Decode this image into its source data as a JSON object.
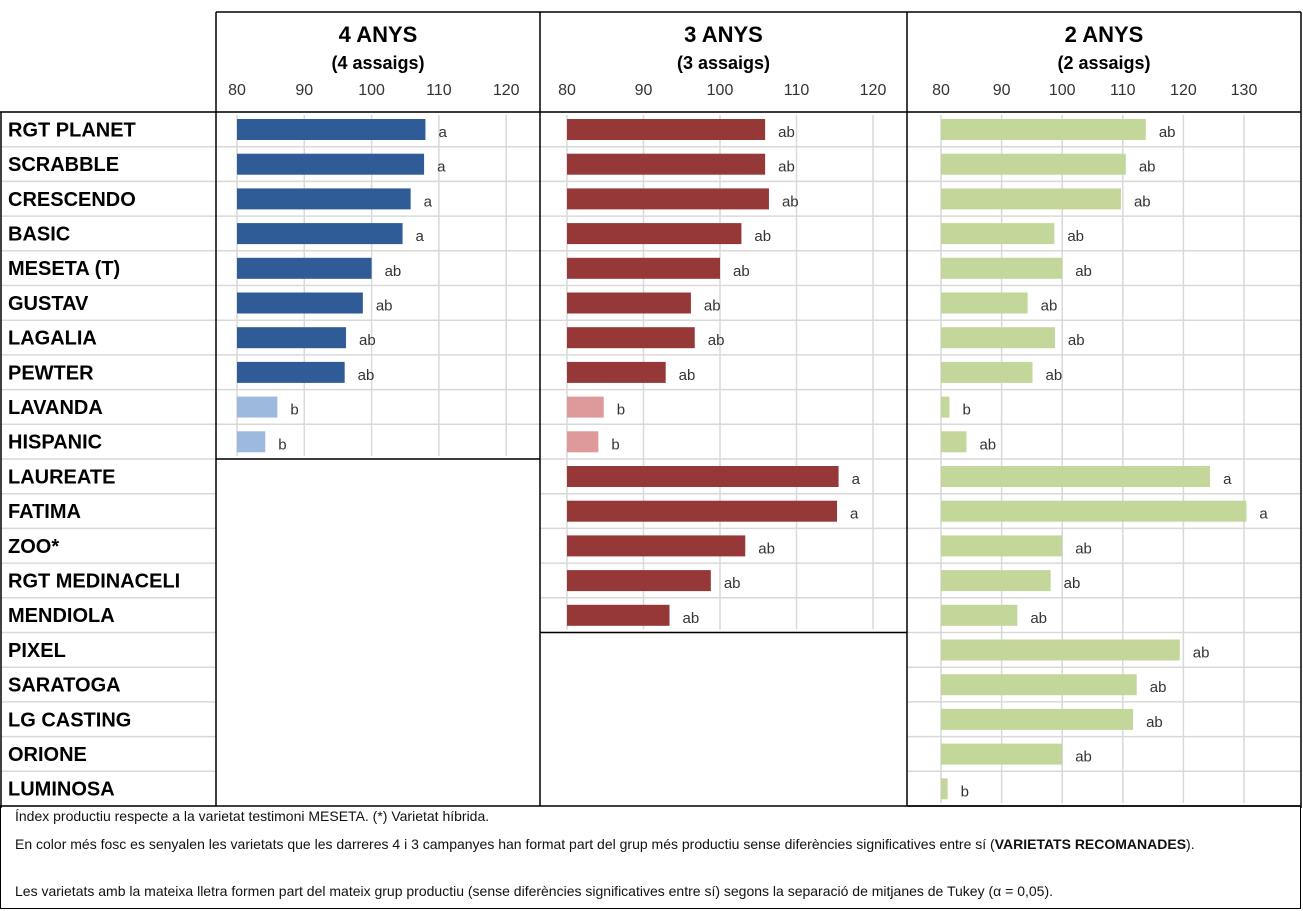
{
  "chart_data": {
    "type": "bar",
    "orientation": "horizontal",
    "row_labels": [
      "RGT PLANET",
      "SCRABBLE",
      "CRESCENDO",
      "BASIC",
      "MESETA (T)",
      "GUSTAV",
      "LAGALIA",
      "PEWTER",
      "LAVANDA",
      "HISPANIC",
      "LAUREATE",
      "FATIMA",
      "ZOO*",
      "RGT MEDINACELI",
      "MENDIOLA",
      "PIXEL",
      "SARATOGA",
      "LG CASTING",
      "ORIONE",
      "LUMINOSA"
    ],
    "panels": [
      {
        "title": "4 ANYS",
        "subtitle": "(4 assaigs)",
        "xlim": [
          80,
          125
        ],
        "ticks": [
          80,
          90,
          100,
          110,
          120
        ],
        "colors": {
          "dark": "#2F5C96",
          "light": "#9DB9DE"
        },
        "bars": [
          {
            "label": "RGT PLANET",
            "value": 108,
            "group": "a",
            "tone": "dark"
          },
          {
            "label": "SCRABBLE",
            "value": 107.8,
            "group": "a",
            "tone": "dark"
          },
          {
            "label": "CRESCENDO",
            "value": 105.8,
            "group": "a",
            "tone": "dark"
          },
          {
            "label": "BASIC",
            "value": 104.6,
            "group": "a",
            "tone": "dark"
          },
          {
            "label": "MESETA (T)",
            "value": 100,
            "group": "ab",
            "tone": "dark"
          },
          {
            "label": "GUSTAV",
            "value": 98.7,
            "group": "ab",
            "tone": "dark"
          },
          {
            "label": "LAGALIA",
            "value": 96.2,
            "group": "ab",
            "tone": "dark"
          },
          {
            "label": "PEWTER",
            "value": 96,
            "group": "ab",
            "tone": "dark"
          },
          {
            "label": "LAVANDA",
            "value": 86,
            "group": "b",
            "tone": "light"
          },
          {
            "label": "HISPANIC",
            "value": 84.2,
            "group": "b",
            "tone": "light"
          }
        ]
      },
      {
        "title": "3 ANYS",
        "subtitle": "(3 assaigs)",
        "xlim": [
          80,
          124
        ],
        "ticks": [
          80,
          90,
          100,
          110,
          120
        ],
        "colors": {
          "dark": "#963837",
          "light": "#DE9A9A"
        },
        "bars": [
          {
            "label": "RGT PLANET",
            "value": 105.9,
            "group": "ab",
            "tone": "dark"
          },
          {
            "label": "SCRABBLE",
            "value": 105.9,
            "group": "ab",
            "tone": "dark"
          },
          {
            "label": "CRESCENDO",
            "value": 106.4,
            "group": "ab",
            "tone": "dark"
          },
          {
            "label": "BASIC",
            "value": 102.8,
            "group": "ab",
            "tone": "dark"
          },
          {
            "label": "MESETA (T)",
            "value": 100,
            "group": "ab",
            "tone": "dark"
          },
          {
            "label": "GUSTAV",
            "value": 96.2,
            "group": "ab",
            "tone": "dark"
          },
          {
            "label": "LAGALIA",
            "value": 96.7,
            "group": "ab",
            "tone": "dark"
          },
          {
            "label": "PEWTER",
            "value": 92.9,
            "group": "ab",
            "tone": "dark"
          },
          {
            "label": "LAVANDA",
            "value": 84.8,
            "group": "b",
            "tone": "light"
          },
          {
            "label": "HISPANIC",
            "value": 84.1,
            "group": "b",
            "tone": "light"
          },
          {
            "label": "LAUREATE",
            "value": 115.5,
            "group": "a",
            "tone": "dark"
          },
          {
            "label": "FATIMA",
            "value": 115.3,
            "group": "a",
            "tone": "dark"
          },
          {
            "label": "ZOO*",
            "value": 103.3,
            "group": "ab",
            "tone": "dark"
          },
          {
            "label": "RGT MEDINACELI",
            "value": 98.8,
            "group": "ab",
            "tone": "dark"
          },
          {
            "label": "MENDIOLA",
            "value": 93.4,
            "group": "ab",
            "tone": "dark"
          }
        ]
      },
      {
        "title": "2 ANYS",
        "subtitle": "(2 assaigs)",
        "xlim": [
          80,
          140
        ],
        "ticks": [
          80,
          90,
          100,
          110,
          120,
          130
        ],
        "colors": {
          "dark": "#C4D79B",
          "light": "#C4D79B"
        },
        "bars": [
          {
            "label": "RGT PLANET",
            "value": 113.8,
            "group": "ab",
            "tone": "dark"
          },
          {
            "label": "SCRABBLE",
            "value": 110.5,
            "group": "ab",
            "tone": "dark"
          },
          {
            "label": "CRESCENDO",
            "value": 109.7,
            "group": "ab",
            "tone": "dark"
          },
          {
            "label": "BASIC",
            "value": 98.7,
            "group": "ab",
            "tone": "dark"
          },
          {
            "label": "MESETA (T)",
            "value": 100,
            "group": "ab",
            "tone": "dark"
          },
          {
            "label": "GUSTAV",
            "value": 94.3,
            "group": "ab",
            "tone": "dark"
          },
          {
            "label": "LAGALIA",
            "value": 98.8,
            "group": "ab",
            "tone": "dark"
          },
          {
            "label": "PEWTER",
            "value": 95.1,
            "group": "ab",
            "tone": "dark"
          },
          {
            "label": "LAVANDA",
            "value": 81.4,
            "group": "b",
            "tone": "dark"
          },
          {
            "label": "HISPANIC",
            "value": 84.2,
            "group": "ab",
            "tone": "dark"
          },
          {
            "label": "LAUREATE",
            "value": 124.4,
            "group": "a",
            "tone": "dark"
          },
          {
            "label": "FATIMA",
            "value": 130.4,
            "group": "a",
            "tone": "dark"
          },
          {
            "label": "ZOO*",
            "value": 100,
            "group": "ab",
            "tone": "dark"
          },
          {
            "label": "RGT MEDINACELI",
            "value": 98.1,
            "group": "ab",
            "tone": "dark"
          },
          {
            "label": "MENDIOLA",
            "value": 92.6,
            "group": "ab",
            "tone": "dark"
          },
          {
            "label": "PIXEL",
            "value": 119.4,
            "group": "ab",
            "tone": "dark"
          },
          {
            "label": "SARATOGA",
            "value": 112.3,
            "group": "ab",
            "tone": "dark"
          },
          {
            "label": "LG CASTING",
            "value": 111.7,
            "group": "ab",
            "tone": "dark"
          },
          {
            "label": "ORIONE",
            "value": 100,
            "group": "ab",
            "tone": "dark"
          },
          {
            "label": "LUMINOSA",
            "value": 81.1,
            "group": "b",
            "tone": "dark"
          }
        ]
      }
    ]
  },
  "notes": {
    "line1": "Índex productiu respecte a la varietat testimoni MESETA. (*) Varietat híbrida.",
    "line2_start": "En color més fosc es senyalen les varietats que les darreres 4 i 3 campanyes han format part del grup més productiu sense diferències significatives entre sí (",
    "line2_bold": "VARIETATS RECOMANADES",
    "line2_end": ").",
    "line3": "Les varietats amb la mateixa lletra formen part del mateix grup productiu (sense diferències significatives entre sí) segons la separació de mitjanes de Tukey (α = 0,05)."
  }
}
